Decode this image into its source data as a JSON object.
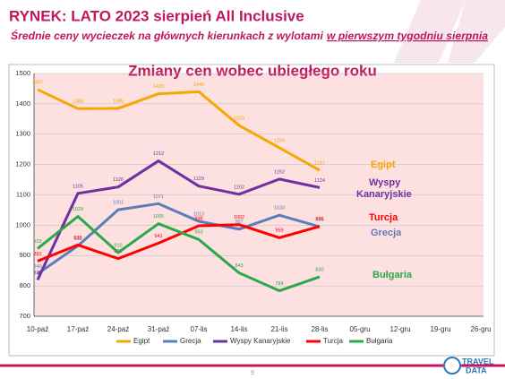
{
  "header": {
    "title": "RYNEK: LATO 2023 sierpień All Inclusive",
    "subtitle_parts": [
      "Średnie ceny wycieczek na głównych kierunkach z wylotami",
      "w pierwszym tygodniu sierpnia"
    ],
    "page_number": "9",
    "logo": [
      "TRAVEL",
      "DATA"
    ]
  },
  "chart_data": {
    "type": "line",
    "title": "Zmiany cen wobec ubiegłego roku",
    "categories": [
      "10-paź",
      "17-paź",
      "24-paź",
      "31-paź",
      "07-lis",
      "14-lis",
      "21-lis",
      "28-lis",
      "05-gru",
      "12-gru",
      "19-gru",
      "26-gru"
    ],
    "series": [
      {
        "name": "Egipt",
        "color": "#f5a800",
        "values": [
          1447,
          1384,
          1385,
          1433,
          1440,
          1329,
          1255,
          1181,
          null,
          null,
          null,
          null
        ]
      },
      {
        "name": "Grecja",
        "color": "#5b7db8",
        "values": [
          840,
          932,
          1051,
          1071,
          1013,
          987,
          1033,
          995,
          null,
          null,
          null,
          null
        ]
      },
      {
        "name": "Wyspy Kanaryjskie",
        "color": "#7030a0",
        "values": [
          820,
          1105,
          1126,
          1212,
          1129,
          1102,
          1152,
          1124,
          null,
          null,
          null,
          null
        ]
      },
      {
        "name": "Turcja",
        "color": "#ff0000",
        "values": [
          882,
          935,
          890,
          941,
          998,
          1002,
          959,
          996,
          null,
          null,
          null,
          null
        ]
      },
      {
        "name": "Bułgaria",
        "color": "#2ca84c",
        "values": [
          923,
          1029,
          910,
          1005,
          953,
          843,
          784,
          830,
          null,
          null,
          null,
          null
        ]
      }
    ],
    "ylim": [
      700,
      1500
    ],
    "yticks": [
      700,
      800,
      900,
      1000,
      1100,
      1200,
      1300,
      1400,
      1500
    ],
    "grid": true,
    "legend": "bottom",
    "annotations": [
      "Egipt",
      "Wyspy",
      "Kanaryjskie",
      "Turcja",
      "Grecja",
      "Bułgaria"
    ]
  }
}
